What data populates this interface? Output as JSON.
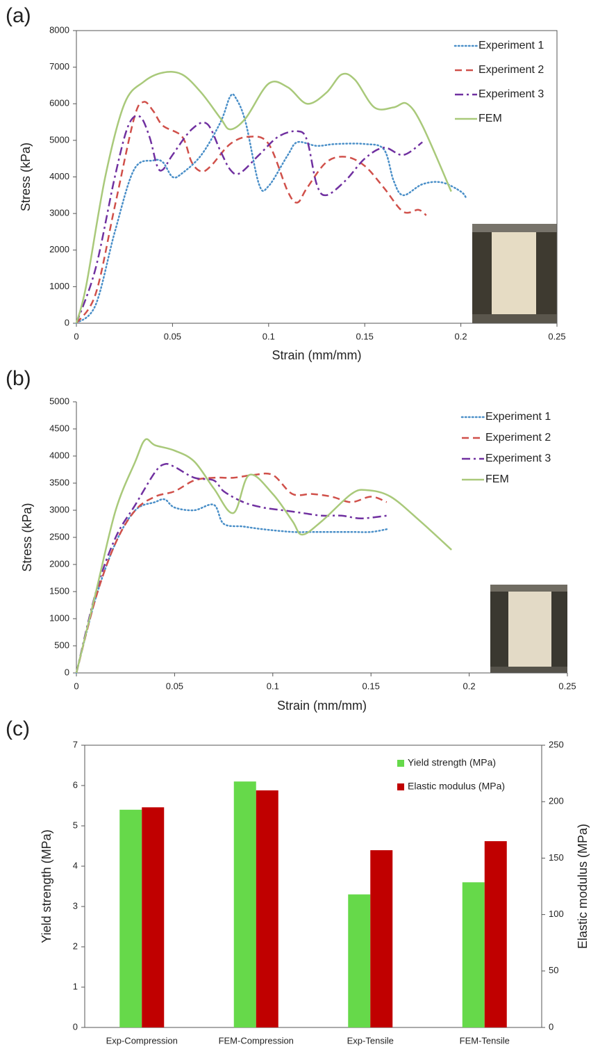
{
  "chart_data": [
    {
      "type": "line",
      "label": "(a)",
      "x_label": "Strain (mm/mm)",
      "y_label": "Stress (kPa)",
      "xlim": [
        0,
        0.25
      ],
      "xticks": [
        0,
        0.05,
        0.1,
        0.15,
        0.2,
        0.25
      ],
      "ylim": [
        0,
        8000
      ],
      "yticks": [
        0,
        1000,
        2000,
        3000,
        4000,
        5000,
        6000,
        7000,
        8000
      ],
      "legend": "upper right",
      "frame": true,
      "series": [
        {
          "name": "Experiment 1",
          "color": "#4a8fc8",
          "style": "dotted",
          "x": [
            0,
            0.01,
            0.02,
            0.03,
            0.04,
            0.045,
            0.05,
            0.055,
            0.065,
            0.075,
            0.08,
            0.083,
            0.088,
            0.095,
            0.1,
            0.11,
            0.115,
            0.125,
            0.135,
            0.15,
            0.16,
            0.165,
            0.17,
            0.18,
            0.19,
            0.2,
            0.203
          ],
          "values": [
            0,
            500,
            2500,
            4200,
            4450,
            4400,
            4000,
            4100,
            4600,
            5500,
            6200,
            6150,
            5500,
            3800,
            3750,
            4600,
            4950,
            4850,
            4900,
            4900,
            4750,
            3900,
            3500,
            3800,
            3850,
            3600,
            3400
          ]
        },
        {
          "name": "Experiment 2",
          "color": "#d0504a",
          "style": "dashed",
          "x": [
            0,
            0.01,
            0.02,
            0.03,
            0.035,
            0.04,
            0.045,
            0.055,
            0.06,
            0.065,
            0.07,
            0.08,
            0.09,
            0.1,
            0.11,
            0.115,
            0.12,
            0.13,
            0.14,
            0.15,
            0.16,
            0.17,
            0.178,
            0.182
          ],
          "values": [
            0,
            800,
            3200,
            5600,
            6050,
            5800,
            5400,
            5100,
            4400,
            4150,
            4300,
            4900,
            5100,
            4900,
            3600,
            3300,
            3700,
            4400,
            4550,
            4300,
            3700,
            3050,
            3100,
            2950
          ]
        },
        {
          "name": "Experiment 3",
          "color": "#7030a0",
          "style": "dashdot",
          "x": [
            0,
            0.01,
            0.02,
            0.027,
            0.033,
            0.038,
            0.042,
            0.045,
            0.05,
            0.06,
            0.068,
            0.075,
            0.08,
            0.085,
            0.095,
            0.105,
            0.115,
            0.12,
            0.125,
            0.13,
            0.14,
            0.15,
            0.16,
            0.17,
            0.18
          ],
          "values": [
            0,
            1500,
            4000,
            5400,
            5650,
            5100,
            4300,
            4200,
            4600,
            5300,
            5450,
            4700,
            4200,
            4100,
            4600,
            5100,
            5250,
            5000,
            3800,
            3500,
            3900,
            4500,
            4800,
            4600,
            4950
          ]
        },
        {
          "name": "FEM",
          "color": "#a9c97a",
          "style": "solid",
          "x": [
            0,
            0.005,
            0.015,
            0.025,
            0.035,
            0.045,
            0.055,
            0.065,
            0.075,
            0.08,
            0.088,
            0.1,
            0.11,
            0.12,
            0.13,
            0.138,
            0.145,
            0.155,
            0.165,
            0.172,
            0.18,
            0.195
          ],
          "values": [
            0,
            1000,
            4000,
            6000,
            6600,
            6850,
            6800,
            6300,
            5600,
            5300,
            5600,
            6550,
            6450,
            6000,
            6300,
            6800,
            6650,
            5900,
            5900,
            6000,
            5400,
            3600
          ]
        }
      ]
    },
    {
      "type": "line",
      "label": "(b)",
      "x_label": "Strain (mm/mm)",
      "y_label": "Stress (kPa)",
      "xlim": [
        0,
        0.25
      ],
      "xticks": [
        0,
        0.05,
        0.1,
        0.15,
        0.2,
        0.25
      ],
      "ylim": [
        0,
        5000
      ],
      "yticks": [
        0,
        500,
        1000,
        1500,
        2000,
        2500,
        3000,
        3500,
        4000,
        4500,
        5000
      ],
      "legend": "upper right",
      "frame": false,
      "series": [
        {
          "name": "Experiment 1",
          "color": "#4a8fc8",
          "style": "dotted",
          "x": [
            0,
            0.01,
            0.02,
            0.03,
            0.04,
            0.045,
            0.05,
            0.06,
            0.07,
            0.075,
            0.085,
            0.095,
            0.11,
            0.12,
            0.13,
            0.14,
            0.15,
            0.158
          ],
          "values": [
            0,
            1400,
            2400,
            3000,
            3150,
            3200,
            3050,
            3000,
            3100,
            2750,
            2700,
            2650,
            2600,
            2600,
            2600,
            2600,
            2600,
            2650
          ]
        },
        {
          "name": "Experiment 2",
          "color": "#d0504a",
          "style": "dashed",
          "x": [
            0,
            0.01,
            0.02,
            0.03,
            0.04,
            0.05,
            0.06,
            0.07,
            0.08,
            0.09,
            0.1,
            0.11,
            0.12,
            0.13,
            0.14,
            0.15,
            0.158
          ],
          "values": [
            0,
            1400,
            2400,
            3000,
            3250,
            3350,
            3550,
            3600,
            3600,
            3650,
            3650,
            3300,
            3300,
            3250,
            3150,
            3250,
            3150
          ]
        },
        {
          "name": "Experiment 3",
          "color": "#7030a0",
          "style": "dashdot",
          "x": [
            0,
            0.01,
            0.02,
            0.03,
            0.04,
            0.045,
            0.05,
            0.06,
            0.07,
            0.075,
            0.085,
            0.095,
            0.105,
            0.115,
            0.125,
            0.135,
            0.145,
            0.158
          ],
          "values": [
            0,
            1500,
            2500,
            3100,
            3700,
            3850,
            3800,
            3600,
            3550,
            3350,
            3150,
            3050,
            3000,
            2950,
            2900,
            2900,
            2850,
            2900
          ]
        },
        {
          "name": "FEM",
          "color": "#a9c97a",
          "style": "solid",
          "x": [
            0,
            0.01,
            0.02,
            0.03,
            0.035,
            0.04,
            0.05,
            0.06,
            0.07,
            0.08,
            0.088,
            0.1,
            0.11,
            0.115,
            0.125,
            0.14,
            0.148,
            0.16,
            0.175,
            0.191
          ],
          "values": [
            0,
            1500,
            3000,
            3900,
            4300,
            4200,
            4100,
            3900,
            3400,
            2950,
            3650,
            3300,
            2800,
            2550,
            2800,
            3300,
            3370,
            3250,
            2800,
            2270
          ]
        }
      ]
    },
    {
      "type": "bar",
      "label": "(c)",
      "y_label": "Yield strength (MPa)",
      "y2_label": "Elastic modulus (MPa)",
      "categories": [
        "Exp-Compression",
        "FEM-Compression",
        "Exp-Tensile",
        "FEM-Tensile"
      ],
      "ylim": [
        0,
        7
      ],
      "yticks": [
        0,
        1,
        2,
        3,
        4,
        5,
        6,
        7
      ],
      "y2lim": [
        0,
        250
      ],
      "y2ticks": [
        0,
        50,
        100,
        150,
        200,
        250
      ],
      "legend": "upper right",
      "frame": true,
      "series": [
        {
          "name": "Yield strength (MPa)",
          "color": "#66d94a",
          "values": [
            5.4,
            6.1,
            3.3,
            3.6
          ]
        },
        {
          "name": "Elastic modulus (MPa)",
          "color": "#c00000",
          "axis": "y2",
          "values": [
            195,
            210,
            157,
            165
          ]
        }
      ]
    }
  ]
}
